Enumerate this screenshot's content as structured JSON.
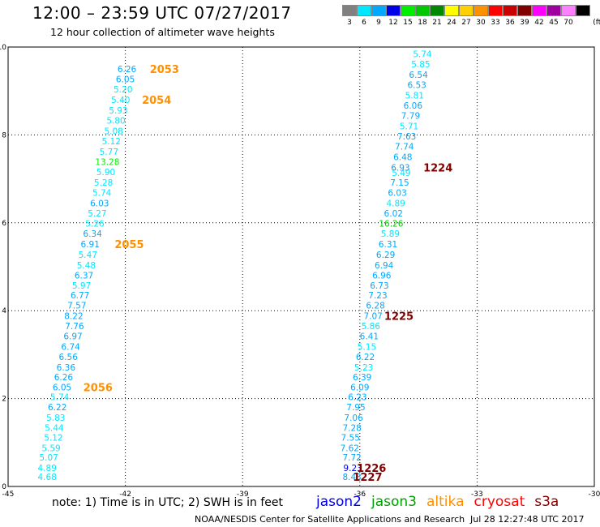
{
  "header": {
    "title": "12:00 – 23:59 UTC 07/27/2017",
    "subtitle": "12 hour collection of altimeter wave heights"
  },
  "scale": {
    "unit_label": "(ft)",
    "items": [
      {
        "label": "3",
        "color": "#808080"
      },
      {
        "label": "6",
        "color": "#00e8ff"
      },
      {
        "label": "9",
        "color": "#00a8ff"
      },
      {
        "label": "12",
        "color": "#0000e8"
      },
      {
        "label": "15",
        "color": "#00ee00"
      },
      {
        "label": "18",
        "color": "#00c800"
      },
      {
        "label": "21",
        "color": "#008800"
      },
      {
        "label": "24",
        "color": "#ffff00"
      },
      {
        "label": "27",
        "color": "#ffd000"
      },
      {
        "label": "30",
        "color": "#ff9000"
      },
      {
        "label": "33",
        "color": "#ff0000"
      },
      {
        "label": "36",
        "color": "#c80000"
      },
      {
        "label": "39",
        "color": "#800000"
      },
      {
        "label": "42",
        "color": "#ff00ff"
      },
      {
        "label": "45",
        "color": "#a000a0"
      },
      {
        "label": "70",
        "color": "#ff80ff"
      },
      {
        "label": "",
        "color": "#000000"
      }
    ]
  },
  "chart_data": {
    "type": "scatter",
    "xlim": [
      -45,
      -30
    ],
    "ylim": [
      0,
      10
    ],
    "x_ticks": [
      -45,
      -42,
      -39,
      -36,
      -33,
      -30
    ],
    "y_ticks": [
      0,
      2,
      4,
      6,
      8,
      10
    ],
    "grid": true,
    "series": [
      {
        "name": "track-west",
        "points": [
          {
            "x": -44.0,
            "y": 0.22,
            "v": "4.68",
            "c": "#00e8ff"
          },
          {
            "x": -44.0,
            "y": 0.42,
            "v": "4.89",
            "c": "#00e8ff"
          },
          {
            "x": -43.96,
            "y": 0.66,
            "v": "5.07",
            "c": "#00e8ff"
          },
          {
            "x": -43.9,
            "y": 0.88,
            "v": "5.59",
            "c": "#00e8ff"
          },
          {
            "x": -43.84,
            "y": 1.12,
            "v": "5.12",
            "c": "#00e8ff"
          },
          {
            "x": -43.82,
            "y": 1.34,
            "v": "5.44",
            "c": "#00e8ff"
          },
          {
            "x": -43.78,
            "y": 1.57,
            "v": "5.83",
            "c": "#00e8ff"
          },
          {
            "x": -43.74,
            "y": 1.81,
            "v": "6.22",
            "c": "#00a8ff"
          },
          {
            "x": -43.68,
            "y": 2.04,
            "v": "5.74",
            "c": "#00e8ff"
          },
          {
            "x": -43.62,
            "y": 2.26,
            "v": "6.05",
            "c": "#00a8ff"
          },
          {
            "x": -43.58,
            "y": 2.49,
            "v": "6.26",
            "c": "#00a8ff"
          },
          {
            "x": -43.52,
            "y": 2.71,
            "v": "6.36",
            "c": "#00a8ff"
          },
          {
            "x": -43.46,
            "y": 2.95,
            "v": "6.56",
            "c": "#00a8ff"
          },
          {
            "x": -43.4,
            "y": 3.18,
            "v": "6.74",
            "c": "#00a8ff"
          },
          {
            "x": -43.34,
            "y": 3.42,
            "v": "6.97",
            "c": "#00a8ff"
          },
          {
            "x": -43.3,
            "y": 3.65,
            "v": "7.76",
            "c": "#00a8ff"
          },
          {
            "x": -43.32,
            "y": 3.88,
            "v": "8.22",
            "c": "#00a8ff"
          },
          {
            "x": -43.24,
            "y": 4.12,
            "v": "7.57",
            "c": "#00a8ff"
          },
          {
            "x": -43.16,
            "y": 4.35,
            "v": "6.77",
            "c": "#00a8ff"
          },
          {
            "x": -43.12,
            "y": 4.58,
            "v": "5.97",
            "c": "#00e8ff"
          },
          {
            "x": -43.06,
            "y": 4.81,
            "v": "6.37",
            "c": "#00a8ff"
          },
          {
            "x": -43.0,
            "y": 5.04,
            "v": "5.48",
            "c": "#00e8ff"
          },
          {
            "x": -42.96,
            "y": 5.28,
            "v": "5.47",
            "c": "#00e8ff"
          },
          {
            "x": -42.9,
            "y": 5.52,
            "v": "6.91",
            "c": "#00a8ff"
          },
          {
            "x": -42.84,
            "y": 5.76,
            "v": "6.34",
            "c": "#00a8ff"
          },
          {
            "x": -42.78,
            "y": 5.99,
            "v": "5.26",
            "c": "#00e8ff"
          },
          {
            "x": -42.72,
            "y": 6.22,
            "v": "5.27",
            "c": "#00e8ff"
          },
          {
            "x": -42.66,
            "y": 6.45,
            "v": "6.03",
            "c": "#00a8ff"
          },
          {
            "x": -42.6,
            "y": 6.69,
            "v": "5.74",
            "c": "#00e8ff"
          },
          {
            "x": -42.56,
            "y": 6.92,
            "v": "5.28",
            "c": "#00e8ff"
          },
          {
            "x": -42.5,
            "y": 7.16,
            "v": "5.90",
            "c": "#00e8ff"
          },
          {
            "x": -42.46,
            "y": 7.39,
            "v": "13.28",
            "c": "#00ee00"
          },
          {
            "x": -42.42,
            "y": 7.62,
            "v": "5.77",
            "c": "#00e8ff"
          },
          {
            "x": -42.36,
            "y": 7.86,
            "v": "5.12",
            "c": "#00e8ff"
          },
          {
            "x": -42.3,
            "y": 8.09,
            "v": "5.08",
            "c": "#00e8ff"
          },
          {
            "x": -42.24,
            "y": 8.33,
            "v": "5.80",
            "c": "#00e8ff"
          },
          {
            "x": -42.18,
            "y": 8.56,
            "v": "5.93",
            "c": "#00e8ff"
          },
          {
            "x": -42.12,
            "y": 8.8,
            "v": "5.40",
            "c": "#00e8ff"
          },
          {
            "x": -42.06,
            "y": 9.04,
            "v": "5.20",
            "c": "#00e8ff"
          },
          {
            "x": -42.0,
            "y": 9.27,
            "v": "6.05",
            "c": "#00a8ff"
          },
          {
            "x": -41.96,
            "y": 9.5,
            "v": "6.26",
            "c": "#00a8ff"
          }
        ]
      },
      {
        "name": "track-east",
        "points": [
          {
            "x": -36.2,
            "y": 0.22,
            "v": "8.43",
            "c": "#00a8ff"
          },
          {
            "x": -36.18,
            "y": 0.42,
            "v": "9.23",
            "c": "#0000e8"
          },
          {
            "x": -36.2,
            "y": 0.66,
            "v": "7.72",
            "c": "#00a8ff"
          },
          {
            "x": -36.26,
            "y": 0.88,
            "v": "7.62",
            "c": "#00a8ff"
          },
          {
            "x": -36.24,
            "y": 1.12,
            "v": "7.55",
            "c": "#00a8ff"
          },
          {
            "x": -36.2,
            "y": 1.34,
            "v": "7.28",
            "c": "#00a8ff"
          },
          {
            "x": -36.16,
            "y": 1.57,
            "v": "7.06",
            "c": "#00a8ff"
          },
          {
            "x": -36.1,
            "y": 1.81,
            "v": "7.95",
            "c": "#00a8ff"
          },
          {
            "x": -36.06,
            "y": 2.04,
            "v": "6.23",
            "c": "#00a8ff"
          },
          {
            "x": -36.0,
            "y": 2.26,
            "v": "6.09",
            "c": "#00a8ff"
          },
          {
            "x": -35.94,
            "y": 2.49,
            "v": "6.39",
            "c": "#00a8ff"
          },
          {
            "x": -35.9,
            "y": 2.71,
            "v": "5.23",
            "c": "#00e8ff"
          },
          {
            "x": -35.86,
            "y": 2.95,
            "v": "6.22",
            "c": "#00a8ff"
          },
          {
            "x": -35.82,
            "y": 3.18,
            "v": "5.15",
            "c": "#00e8ff"
          },
          {
            "x": -35.76,
            "y": 3.42,
            "v": "6.41",
            "c": "#00a8ff"
          },
          {
            "x": -35.72,
            "y": 3.65,
            "v": "5.86",
            "c": "#00e8ff"
          },
          {
            "x": -35.66,
            "y": 3.88,
            "v": "7.07",
            "c": "#00a8ff"
          },
          {
            "x": -35.6,
            "y": 4.12,
            "v": "6.28",
            "c": "#00a8ff"
          },
          {
            "x": -35.54,
            "y": 4.35,
            "v": "7.23",
            "c": "#00a8ff"
          },
          {
            "x": -35.5,
            "y": 4.58,
            "v": "6.73",
            "c": "#00a8ff"
          },
          {
            "x": -35.44,
            "y": 4.81,
            "v": "6.96",
            "c": "#00a8ff"
          },
          {
            "x": -35.38,
            "y": 5.04,
            "v": "6.94",
            "c": "#00a8ff"
          },
          {
            "x": -35.34,
            "y": 5.28,
            "v": "6.29",
            "c": "#00a8ff"
          },
          {
            "x": -35.28,
            "y": 5.52,
            "v": "6.31",
            "c": "#00a8ff"
          },
          {
            "x": -35.22,
            "y": 5.76,
            "v": "5.89",
            "c": "#00e8ff"
          },
          {
            "x": -35.2,
            "y": 5.99,
            "v": "16.26",
            "c": "#00c800"
          },
          {
            "x": -35.14,
            "y": 6.22,
            "v": "6.02",
            "c": "#00a8ff"
          },
          {
            "x": -35.08,
            "y": 6.45,
            "v": "4.89",
            "c": "#00e8ff"
          },
          {
            "x": -35.04,
            "y": 6.69,
            "v": "6.03",
            "c": "#00a8ff"
          },
          {
            "x": -34.98,
            "y": 6.92,
            "v": "7.15",
            "c": "#00a8ff"
          },
          {
            "x": -34.94,
            "y": 7.14,
            "v": "5.49",
            "c": "#00e8ff"
          },
          {
            "x": -34.96,
            "y": 7.26,
            "v": "6.93",
            "c": "#00a8ff"
          },
          {
            "x": -34.9,
            "y": 7.5,
            "v": "6.48",
            "c": "#00a8ff"
          },
          {
            "x": -34.86,
            "y": 7.74,
            "v": "7.74",
            "c": "#00a8ff"
          },
          {
            "x": -34.8,
            "y": 7.97,
            "v": "7.63",
            "c": "#00a8ff"
          },
          {
            "x": -34.74,
            "y": 8.2,
            "v": "5.71",
            "c": "#00e8ff"
          },
          {
            "x": -34.7,
            "y": 8.44,
            "v": "7.79",
            "c": "#00a8ff"
          },
          {
            "x": -34.64,
            "y": 8.67,
            "v": "6.06",
            "c": "#00a8ff"
          },
          {
            "x": -34.6,
            "y": 8.9,
            "v": "5.81",
            "c": "#00e8ff"
          },
          {
            "x": -34.54,
            "y": 9.14,
            "v": "6.53",
            "c": "#00a8ff"
          },
          {
            "x": -34.5,
            "y": 9.37,
            "v": "6.54",
            "c": "#00a8ff"
          },
          {
            "x": -34.44,
            "y": 9.61,
            "v": "5.85",
            "c": "#00e8ff"
          },
          {
            "x": -34.4,
            "y": 9.84,
            "v": "5.74",
            "c": "#00e8ff"
          }
        ]
      }
    ],
    "annotations": [
      {
        "x": -41.0,
        "y": 9.5,
        "text": "2053",
        "color": "#ff9000"
      },
      {
        "x": -41.2,
        "y": 8.8,
        "text": "2054",
        "color": "#ff9000"
      },
      {
        "x": -41.9,
        "y": 5.52,
        "text": "2055",
        "color": "#ff9000"
      },
      {
        "x": -42.7,
        "y": 2.26,
        "text": "2056",
        "color": "#ff9000"
      },
      {
        "x": -34.0,
        "y": 7.26,
        "text": "1224",
        "color": "#800000"
      },
      {
        "x": -35.0,
        "y": 3.88,
        "text": "1225",
        "color": "#800000"
      },
      {
        "x": -35.7,
        "y": 0.42,
        "text": "1226",
        "color": "#800000"
      },
      {
        "x": -35.8,
        "y": 0.22,
        "text": "1227",
        "color": "#800000"
      }
    ]
  },
  "footer": {
    "note": "note:  1) Time is in UTC;  2) SWH is in feet",
    "credit": "NOAA/NESDIS Center for Satellite Applications and Research",
    "timestamp": "Jul 28 12:27:48 UTC 2017",
    "satellites": [
      {
        "label": "jason2",
        "color": "#0000e8"
      },
      {
        "label": "jason3",
        "color": "#00a000"
      },
      {
        "label": "altika",
        "color": "#ff9000"
      },
      {
        "label": "cryosat",
        "color": "#ff0000"
      },
      {
        "label": "s3a",
        "color": "#800000"
      }
    ]
  }
}
